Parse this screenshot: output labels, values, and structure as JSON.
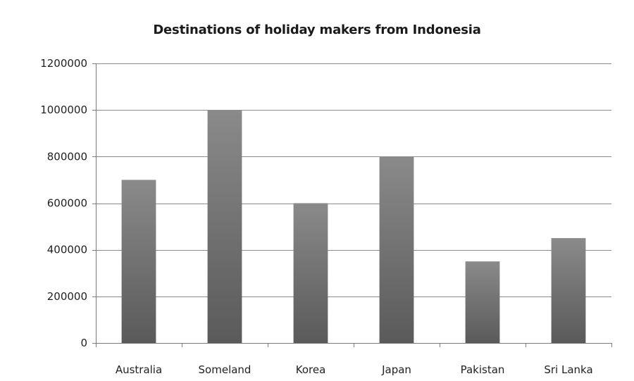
{
  "chart_data": {
    "type": "bar",
    "title": "Destinations of holiday makers from Indonesia",
    "xlabel": "",
    "ylabel": "",
    "categories": [
      "Australia",
      "Someland",
      "Korea",
      "Japan",
      "Pakistan",
      "Sri Lanka"
    ],
    "values": [
      700000,
      1000000,
      600000,
      800000,
      350000,
      450000
    ],
    "ylim": [
      0,
      1200000
    ],
    "yticks": [
      0,
      200000,
      400000,
      600000,
      800000,
      1000000,
      1200000
    ],
    "ytick_labels": [
      "0",
      "200000",
      "400000",
      "600000",
      "800000",
      "1000000",
      "1200000"
    ],
    "grid": true,
    "legend": "none",
    "colors": {
      "bar_dark": "#5a5a5a",
      "bar_light": "#8a8a8a",
      "grid": "#8c8c8c",
      "axis": "#7a7a7a"
    }
  }
}
